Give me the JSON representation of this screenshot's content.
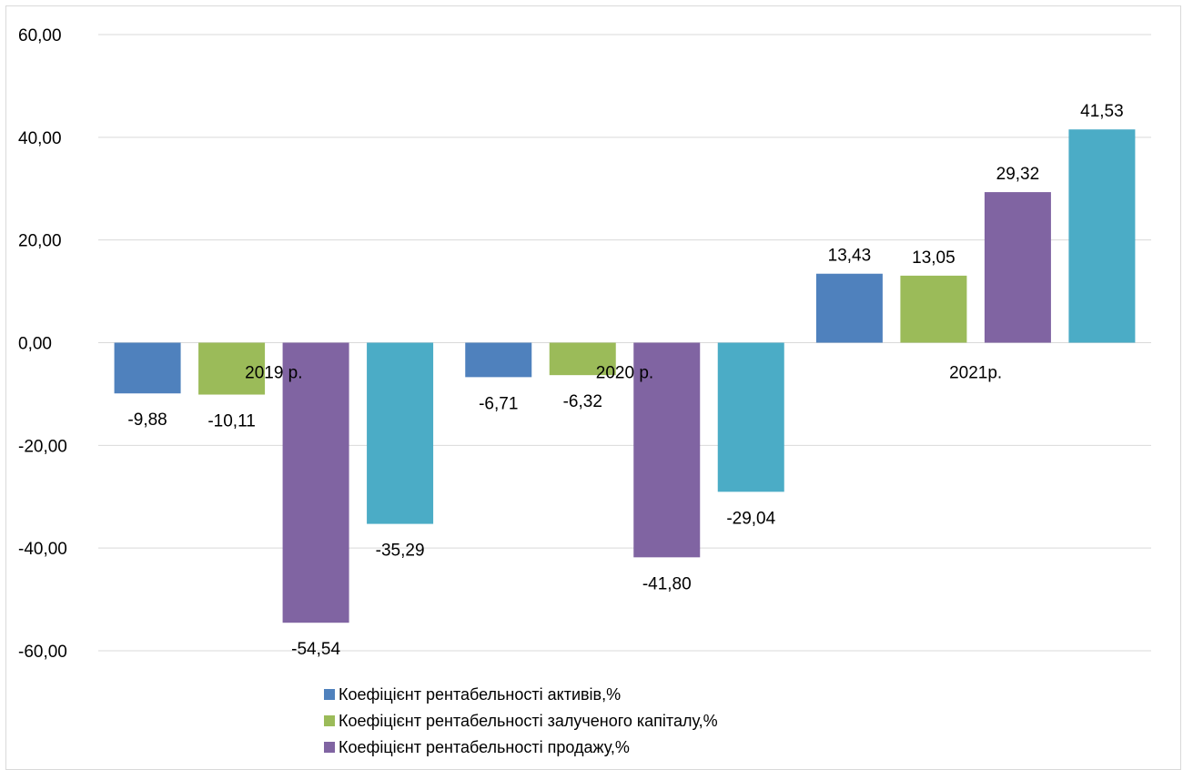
{
  "chart_data": {
    "type": "bar",
    "categories": [
      "2019 р.",
      "2020 р.",
      "2021р."
    ],
    "series": [
      {
        "name": "Коефіцієнт рентабельності активів,%",
        "color": "#4F81BD",
        "values": [
          -9.88,
          -6.71,
          13.43
        ],
        "labels": [
          "-9,88",
          "-6,71",
          "13,43"
        ]
      },
      {
        "name": "Коефіцієнт рентабельності залученого капіталу,%",
        "color": "#9BBB59",
        "values": [
          -10.11,
          -6.32,
          13.05
        ],
        "labels": [
          "-10,11",
          "-6,32",
          "13,05"
        ]
      },
      {
        "name": "Коефіцієнт рентабельності продажу,%",
        "color": "#8064A2",
        "values": [
          -54.54,
          -41.8,
          29.32
        ],
        "labels": [
          "-54,54",
          "-41,80",
          "29,32"
        ]
      },
      {
        "color": "#4BACC6",
        "values": [
          -35.29,
          -29.04,
          41.53
        ],
        "labels": [
          "-35,29",
          "-29,04",
          "41,53"
        ]
      }
    ],
    "ylim": [
      -60,
      60
    ],
    "yticks": [
      60,
      40,
      20,
      0,
      -20,
      -40,
      -60
    ],
    "ytick_labels": [
      "60,00",
      "40,00",
      "20,00",
      "0,00",
      "-20,00",
      "-40,00",
      "-60,00"
    ],
    "grid": true,
    "legend_position": "bottom"
  }
}
